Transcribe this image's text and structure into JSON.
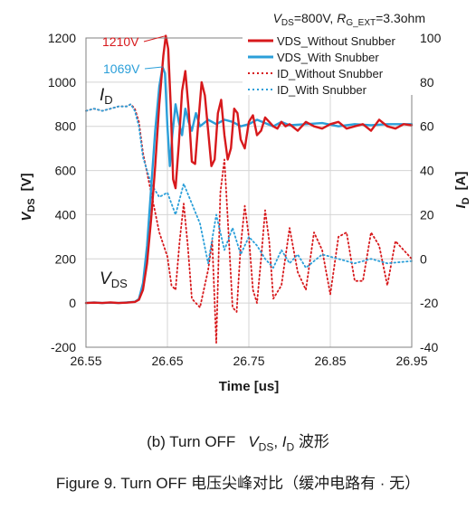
{
  "chart_data": {
    "type": "line",
    "conditions": {
      "vds_sym": "V",
      "vds_sub": "DS",
      "vds_val": "=800V, ",
      "rg_sym": "R",
      "rg_sub": "G_EXT",
      "rg_val": "=3.3ohm"
    },
    "xlabel": "Time [us]",
    "ylabel_left": {
      "sym": "V",
      "sub": "DS",
      "unit": "[V]"
    },
    "ylabel_right": {
      "sym": "I",
      "sub": "D",
      "unit": "[A]"
    },
    "xlim": [
      26.55,
      26.95
    ],
    "ylim_left": [
      -200,
      1200
    ],
    "ylim_right": [
      -40,
      100
    ],
    "x_ticks": [
      "26.55",
      "26.65",
      "26.75",
      "26.85",
      "26.95"
    ],
    "y_left_ticks": [
      "1200",
      "1000",
      "800",
      "600",
      "400",
      "200",
      "0",
      "-200"
    ],
    "y_right_ticks": [
      "100",
      "80",
      "60",
      "40",
      "20",
      "0",
      "-20",
      "-40"
    ],
    "grid": true,
    "legend_position": "top-right",
    "series": [
      {
        "name": "VDS_Without Snubber",
        "axis": "left",
        "style": "solid",
        "color": "#d7191c",
        "x": [
          26.55,
          26.56,
          26.57,
          26.58,
          26.59,
          26.6,
          26.61,
          26.615,
          26.62,
          26.625,
          26.63,
          26.635,
          26.64,
          26.645,
          26.648,
          26.651,
          26.654,
          26.657,
          26.66,
          26.664,
          26.668,
          26.672,
          26.676,
          26.68,
          26.684,
          26.688,
          26.692,
          26.696,
          26.7,
          26.704,
          26.708,
          26.712,
          26.716,
          26.72,
          26.724,
          26.728,
          26.732,
          26.736,
          26.74,
          26.745,
          26.75,
          26.755,
          26.76,
          26.765,
          26.77,
          26.775,
          26.78,
          26.785,
          26.79,
          26.795,
          26.8,
          26.81,
          26.82,
          26.83,
          26.84,
          26.85,
          26.86,
          26.87,
          26.88,
          26.89,
          26.9,
          26.91,
          26.92,
          26.93,
          26.94,
          26.95
        ],
        "y": [
          0,
          2,
          0,
          3,
          0,
          2,
          5,
          15,
          60,
          180,
          380,
          620,
          900,
          1120,
          1210,
          1150,
          900,
          560,
          520,
          720,
          960,
          1050,
          880,
          640,
          630,
          820,
          1000,
          940,
          780,
          620,
          650,
          860,
          920,
          760,
          650,
          700,
          880,
          860,
          740,
          700,
          820,
          850,
          760,
          780,
          840,
          820,
          800,
          790,
          820,
          800,
          810,
          780,
          820,
          800,
          790,
          810,
          820,
          790,
          800,
          810,
          780,
          830,
          800,
          790,
          810,
          805
        ]
      },
      {
        "name": "VDS_With Snubber",
        "axis": "left",
        "style": "solid",
        "color": "#2b9fd9",
        "x": [
          26.55,
          26.56,
          26.57,
          26.58,
          26.59,
          26.6,
          26.61,
          26.615,
          26.62,
          26.625,
          26.63,
          26.635,
          26.64,
          26.644,
          26.647,
          26.65,
          26.653,
          26.656,
          26.66,
          26.664,
          26.668,
          26.672,
          26.676,
          26.68,
          26.685,
          26.69,
          26.7,
          26.71,
          26.72,
          26.73,
          26.74,
          26.75,
          26.76,
          26.77,
          26.78,
          26.79,
          26.8,
          26.82,
          26.84,
          26.86,
          26.88,
          26.9,
          26.92,
          26.95
        ],
        "y": [
          0,
          3,
          0,
          2,
          0,
          3,
          6,
          18,
          90,
          260,
          520,
          780,
          980,
          1069,
          1040,
          800,
          620,
          760,
          900,
          820,
          760,
          880,
          820,
          780,
          860,
          800,
          830,
          810,
          830,
          820,
          800,
          810,
          830,
          815,
          800,
          820,
          805,
          810,
          815,
          800,
          810,
          805,
          810,
          810
        ]
      },
      {
        "name": "ID_Without Snubber",
        "axis": "right",
        "style": "dotted",
        "color": "#d7191c",
        "x": [
          26.55,
          26.56,
          26.57,
          26.58,
          26.59,
          26.6,
          26.605,
          26.61,
          26.615,
          26.62,
          26.63,
          26.64,
          26.65,
          26.655,
          26.66,
          26.665,
          26.67,
          26.675,
          26.68,
          26.69,
          26.7,
          26.705,
          26.71,
          26.715,
          26.72,
          26.725,
          26.73,
          26.735,
          26.74,
          26.745,
          26.75,
          26.755,
          26.76,
          26.765,
          26.77,
          26.775,
          26.78,
          26.79,
          26.8,
          26.81,
          26.82,
          26.83,
          26.84,
          26.85,
          26.86,
          26.87,
          26.88,
          26.89,
          26.9,
          26.91,
          26.92,
          26.93,
          26.95
        ],
        "y": [
          67,
          68,
          67,
          68,
          69,
          69,
          70,
          68,
          62,
          48,
          30,
          12,
          1,
          -12,
          -14,
          8,
          25,
          6,
          -18,
          -22,
          -5,
          8,
          -38,
          30,
          45,
          12,
          -22,
          -24,
          6,
          24,
          10,
          -14,
          -20,
          0,
          22,
          8,
          -18,
          -12,
          14,
          -6,
          -14,
          12,
          4,
          -16,
          10,
          12,
          -10,
          -10,
          12,
          6,
          -12,
          8,
          0
        ]
      },
      {
        "name": "ID_With Snubber",
        "axis": "right",
        "style": "dotted",
        "color": "#2b9fd9",
        "x": [
          26.55,
          26.56,
          26.57,
          26.58,
          26.59,
          26.6,
          26.605,
          26.61,
          26.615,
          26.62,
          26.63,
          26.64,
          26.65,
          26.66,
          26.67,
          26.68,
          26.69,
          26.7,
          26.71,
          26.72,
          26.73,
          26.74,
          26.75,
          26.76,
          26.77,
          26.78,
          26.79,
          26.8,
          26.81,
          26.82,
          26.84,
          26.86,
          26.88,
          26.9,
          26.92,
          26.95
        ],
        "y": [
          67,
          68,
          67,
          68,
          69,
          69,
          70,
          67,
          60,
          46,
          34,
          28,
          30,
          20,
          34,
          25,
          16,
          -2,
          20,
          4,
          14,
          2,
          10,
          6,
          0,
          -4,
          4,
          -2,
          2,
          -4,
          2,
          0,
          -2,
          0,
          -2,
          -1
        ]
      }
    ],
    "annotations": [
      {
        "text": "1210V",
        "color": "#d7191c",
        "x": 26.648,
        "y": 1210,
        "axis": "left"
      },
      {
        "text": "1069V",
        "color": "#2b9fd9",
        "x": 26.644,
        "y": 1069,
        "axis": "left"
      }
    ],
    "inline_labels": [
      {
        "sym": "I",
        "sub": "D"
      },
      {
        "sym": "V",
        "sub": "DS"
      }
    ]
  },
  "captions": {
    "sub_prefix": "(b) Turn OFF",
    "sub_vds_sym": "V",
    "sub_vds_sub": "DS",
    "sub_sep": ", ",
    "sub_id_sym": "I",
    "sub_id_sub": "D",
    "sub_suffix": " 波形",
    "figure": "Figure 9. Turn OFF 电压尖峰对比（缓冲电路有 · 无）"
  }
}
